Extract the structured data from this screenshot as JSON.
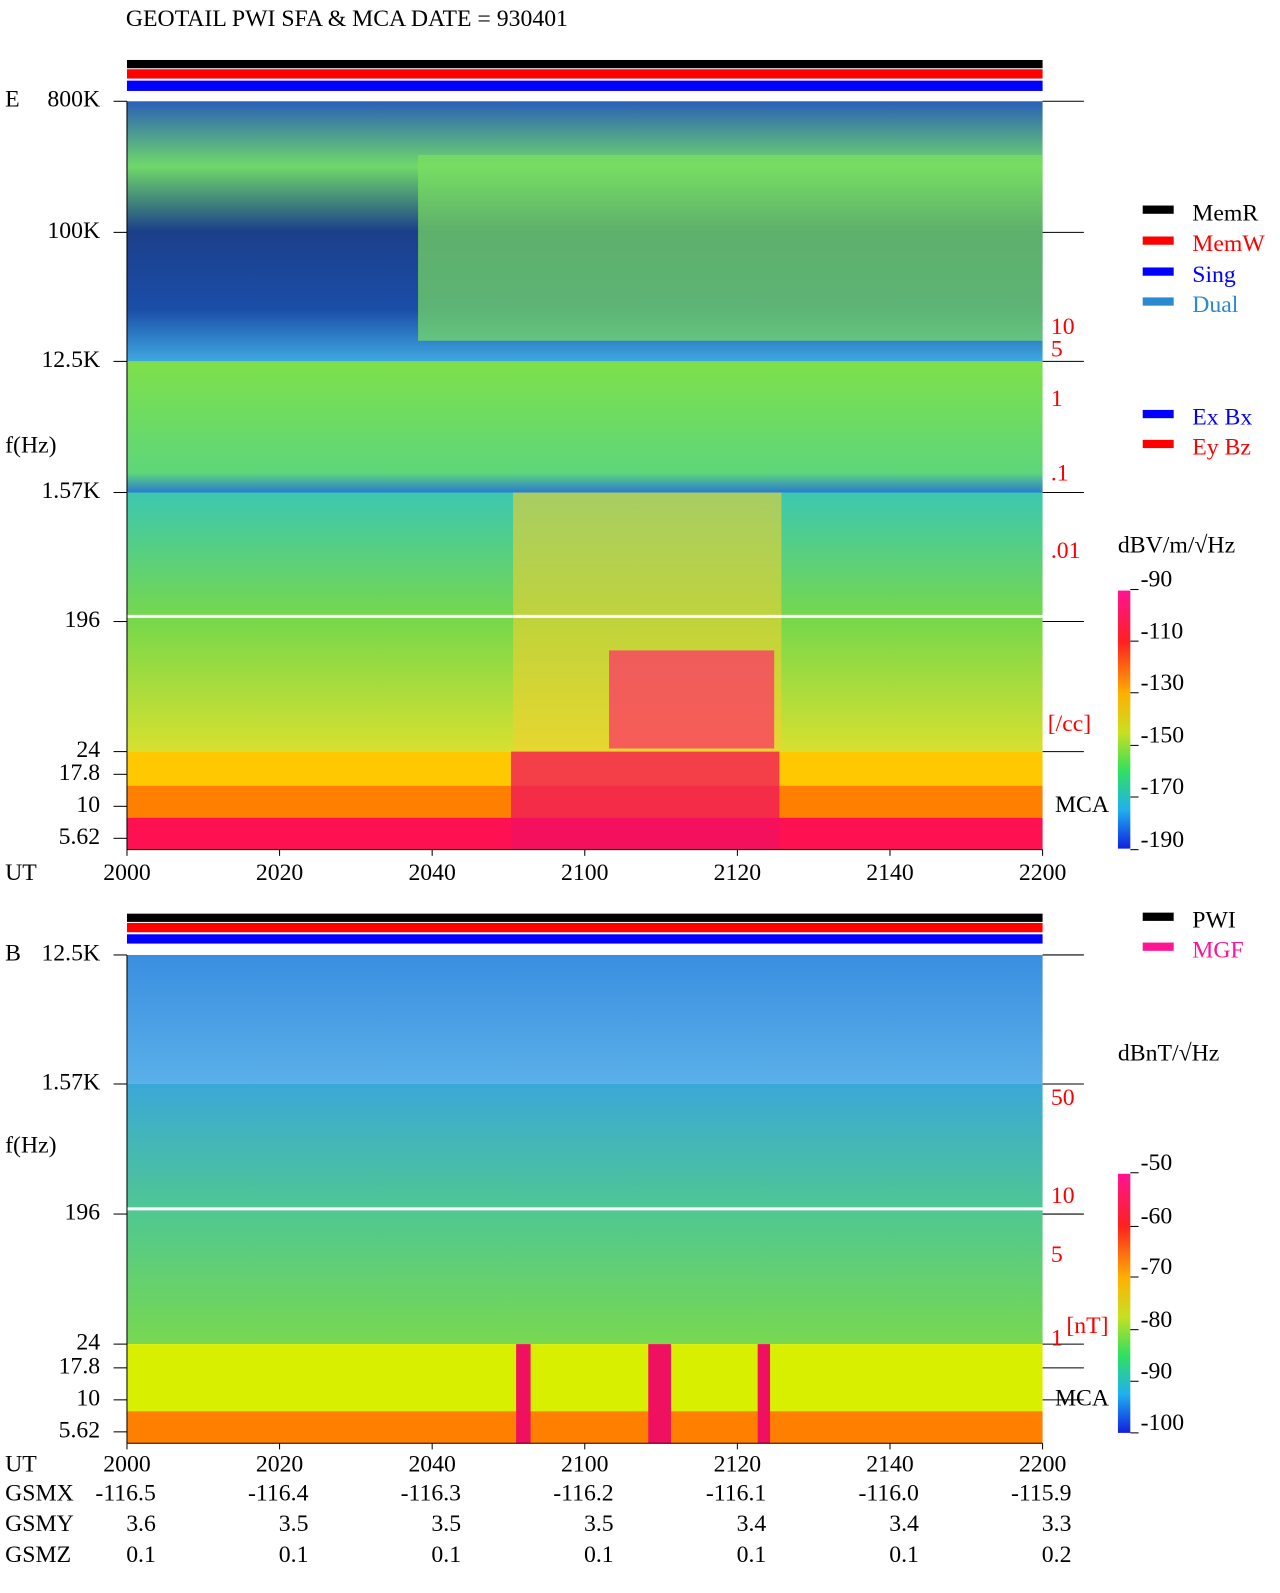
{
  "header": {
    "title": "GEOTAIL  PWI SFA & MCA   DATE = 930401"
  },
  "panel_e": {
    "component": "E",
    "ylabel": "f(Hz)",
    "freq_ticks": [
      "800K",
      "100K",
      "12.5K",
      "1.57K",
      "196",
      "24",
      "17.8",
      "10",
      "5.62"
    ],
    "density_ticks": [
      "10",
      "5",
      "1",
      ".1",
      ".01"
    ],
    "density_unit": "[/cc]",
    "mca_label": "MCA",
    "colorbar_unit": "dBV/m/√Hz",
    "colorbar_ticks": [
      "-90",
      "-110",
      "-130",
      "-150",
      "-170",
      "-190"
    ],
    "time_label": "UT",
    "time_ticks": [
      "2000",
      "2020",
      "2040",
      "2100",
      "2120",
      "2140",
      "2200"
    ],
    "legend_mode": [
      "MemR",
      "MemW",
      "Sing",
      "Dual"
    ],
    "legend_axis": [
      "Ex Bx",
      "Ey Bz"
    ]
  },
  "panel_b": {
    "component": "B",
    "ylabel": "f(Hz)",
    "freq_ticks": [
      "12.5K",
      "1.57K",
      "196",
      "24",
      "17.8",
      "10",
      "5.62"
    ],
    "field_ticks": [
      "50",
      "10",
      "5",
      "1"
    ],
    "field_unit": "[nT]",
    "mca_label": "MCA",
    "colorbar_unit": "dBnT/√Hz",
    "colorbar_ticks": [
      "-50",
      "-60",
      "-70",
      "-80",
      "-90",
      "-100"
    ],
    "time_label": "UT",
    "time_ticks": [
      "2000",
      "2020",
      "2040",
      "2100",
      "2120",
      "2140",
      "2200"
    ],
    "legend_source": [
      "PWI",
      "MGF"
    ]
  },
  "orbit": {
    "rows": [
      {
        "label": "GSMX",
        "values": [
          "-116.5",
          "-116.4",
          "-116.3",
          "-116.2",
          "-116.1",
          "-116.0",
          "-115.9"
        ]
      },
      {
        "label": "GSMY",
        "values": [
          "3.6",
          "3.5",
          "3.5",
          "3.5",
          "3.4",
          "3.4",
          "3.3"
        ]
      },
      {
        "label": "GSMZ",
        "values": [
          "0.1",
          "0.1",
          "0.1",
          "0.1",
          "0.1",
          "0.1",
          "0.2"
        ]
      }
    ]
  }
}
